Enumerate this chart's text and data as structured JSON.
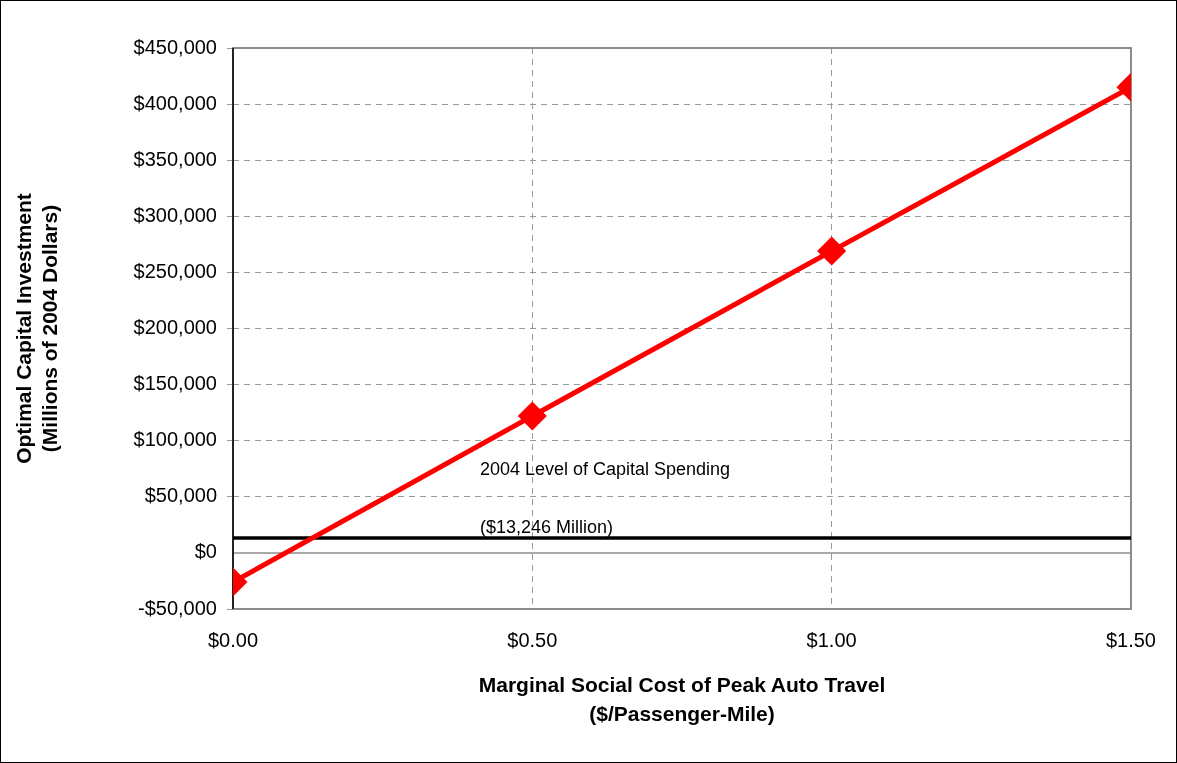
{
  "chart_data": {
    "type": "line",
    "xlabel": "Marginal Social Cost of Peak Auto Travel\n($/Passenger-Mile)",
    "ylabel": "Optimal Capital Investment\n(Millions of 2004 Dollars)",
    "x": [
      0,
      0.5,
      1.0,
      1.5
    ],
    "series": [
      {
        "color": "#ff0000",
        "values": [
          -26000,
          122000,
          269000,
          415000
        ]
      }
    ],
    "xlim": [
      0,
      1.5
    ],
    "xticks": [
      {
        "value": 0,
        "label": "$0.00"
      },
      {
        "value": 0.5,
        "label": "$0.50"
      },
      {
        "value": 1,
        "label": "$1.00"
      },
      {
        "value": 1.5,
        "label": "$1.50"
      }
    ],
    "ylim": [
      -50000,
      450000
    ],
    "yticks": [
      {
        "value": -50000,
        "label": "-$50,000"
      },
      {
        "value": 0,
        "label": "$0"
      },
      {
        "value": 50000,
        "label": "$50,000"
      },
      {
        "value": 100000,
        "label": "$100,000"
      },
      {
        "value": 150000,
        "label": "$150,000"
      },
      {
        "value": 200000,
        "label": "$200,000"
      },
      {
        "value": 250000,
        "label": "$250,000"
      },
      {
        "value": 300000,
        "label": "$300,000"
      },
      {
        "value": 350000,
        "label": "$350,000"
      },
      {
        "value": 400000,
        "label": "$400,000"
      },
      {
        "value": 450000,
        "label": "$450,000"
      }
    ],
    "ref_lines": [
      {
        "axis": "y",
        "value": 13246,
        "label": "2004 Level of Capital Spending\n($13,246 Million)",
        "color": "#000000"
      }
    ],
    "grid": true,
    "legend": false,
    "marker": "diamond",
    "line_style": "solid"
  }
}
